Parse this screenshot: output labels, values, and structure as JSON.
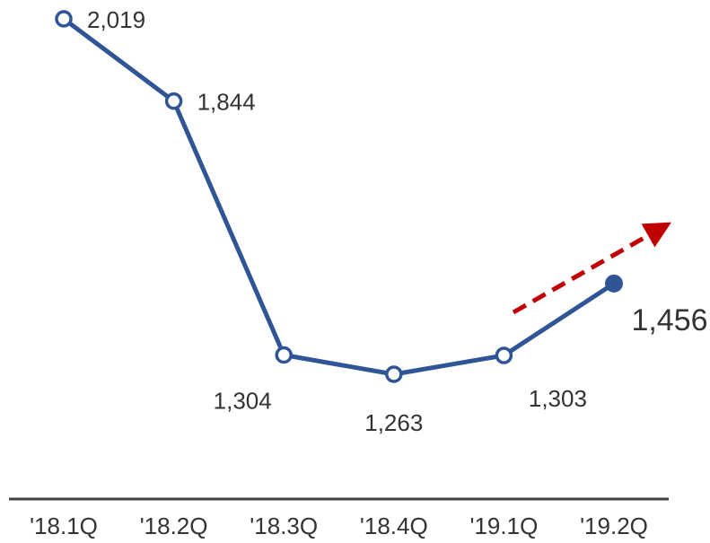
{
  "chart_data": {
    "type": "line",
    "title": "",
    "xlabel": "",
    "ylabel": "",
    "categories": [
      "'18.1Q",
      "'18.2Q",
      "'18.3Q",
      "'18.4Q",
      "'19.1Q",
      "'19.2Q"
    ],
    "series": [
      {
        "values": [
          2019,
          1844,
          1304,
          1263,
          1303,
          1456
        ],
        "data_labels": [
          "2,019",
          "1,844",
          "1,304",
          "1,263",
          "1,303",
          "1,456"
        ]
      }
    ],
    "highlight_index": 5,
    "trend_arrow": "upward",
    "grid": false,
    "legend": "none",
    "colors": {
      "line": "#2f5597",
      "arrow": "#c00000",
      "axis": "#404040",
      "text": "#333333"
    }
  }
}
